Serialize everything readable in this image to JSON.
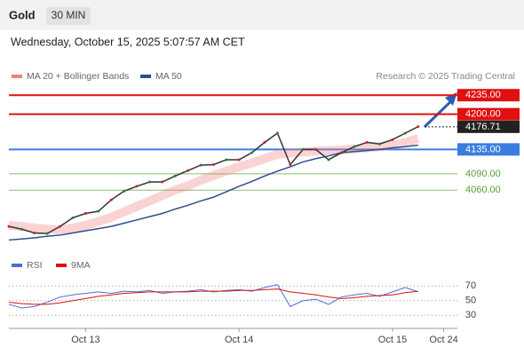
{
  "chart_data": [
    {
      "type": "line",
      "title": "Gold",
      "interval": "30 MIN",
      "subtitle": "Wednesday, October 15, 2025 5:07:57 AM CET",
      "source": "Research © 2025 Trading Central",
      "categories": [
        null,
        null,
        null,
        null,
        null,
        null,
        "Oct 13",
        null,
        null,
        null,
        null,
        null,
        null,
        null,
        null,
        null,
        null,
        null,
        "Oct 14",
        null,
        null,
        null,
        null,
        null,
        null,
        null,
        null,
        null,
        null,
        null,
        "Oct 15",
        null,
        null,
        null,
        "Oct 24",
        null
      ],
      "values": [
        3993,
        3988,
        3981,
        3980,
        3993,
        4009,
        4017,
        4021,
        4042,
        4058,
        4067,
        4075,
        4075,
        4086,
        4096,
        4106,
        4107,
        4116,
        4116,
        4129,
        4148,
        4165,
        4107,
        4135,
        4135,
        4116,
        4129,
        4140,
        4148,
        4145,
        4153,
        4165,
        4177,
        null,
        null,
        null
      ],
      "color": "#333333",
      "series": [
        {
          "name": "MA 20 + Bollinger Bands",
          "color": "#f08080",
          "values": [
            3995,
            3993,
            3990,
            3988,
            3987,
            3990,
            3995,
            4002,
            4010,
            4020,
            4030,
            4040,
            4050,
            4060,
            4068,
            4078,
            4087,
            4095,
            4103,
            4110,
            4118,
            4126,
            4128,
            4130,
            4132,
            4133,
            4134,
            4136,
            4138,
            4140,
            4143,
            4148,
            4155,
            null,
            null,
            null
          ]
        },
        {
          "name": "MA 50",
          "color": "#2e4d8f",
          "values": [
            3968,
            3970,
            3972,
            3975,
            3977,
            3981,
            3985,
            3989,
            3993,
            3999,
            4005,
            4011,
            4017,
            4025,
            4032,
            4040,
            4047,
            4057,
            4067,
            4076,
            4086,
            4095,
            4103,
            4112,
            4118,
            4123,
            4129,
            4131,
            4133,
            4135,
            4138,
            4140,
            4143,
            null,
            null,
            null
          ]
        }
      ],
      "levels": [
        {
          "value": 4235,
          "label": "4235.00",
          "color": "#e01010"
        },
        {
          "value": 4200,
          "label": "4200.00",
          "color": "#e01010"
        },
        {
          "value": 4176.71,
          "label": "4176.71",
          "color": "#222222"
        },
        {
          "value": 4135,
          "label": "4135.00",
          "color": "#3a7de0"
        },
        {
          "value": 4090,
          "label": "4090.00",
          "color": "#5a9e3a"
        },
        {
          "value": 4060,
          "label": "4060.00",
          "color": "#5a9e3a"
        }
      ],
      "ylim": [
        3936,
        4255
      ]
    },
    {
      "type": "line",
      "series": [
        {
          "name": "RSI",
          "color": "#4a6fd0",
          "values": [
            45,
            40,
            42,
            48,
            55,
            58,
            60,
            62,
            60,
            63,
            62,
            64,
            60,
            62,
            63,
            65,
            62,
            64,
            65,
            63,
            68,
            72,
            42,
            50,
            52,
            45,
            55,
            58,
            60,
            56,
            62,
            68,
            62,
            null,
            null,
            null
          ]
        },
        {
          "name": "9MA",
          "color": "#e01010",
          "values": [
            48,
            46,
            45,
            45,
            47,
            50,
            53,
            56,
            58,
            60,
            61,
            62,
            62,
            62,
            62,
            63,
            63,
            63,
            64,
            64,
            65,
            66,
            62,
            60,
            58,
            55,
            53,
            54,
            56,
            57,
            58,
            61,
            63,
            null,
            null,
            null
          ]
        }
      ],
      "ylim": [
        17,
        91
      ],
      "yticks": [
        30,
        50,
        70
      ],
      "grid": true
    }
  ]
}
